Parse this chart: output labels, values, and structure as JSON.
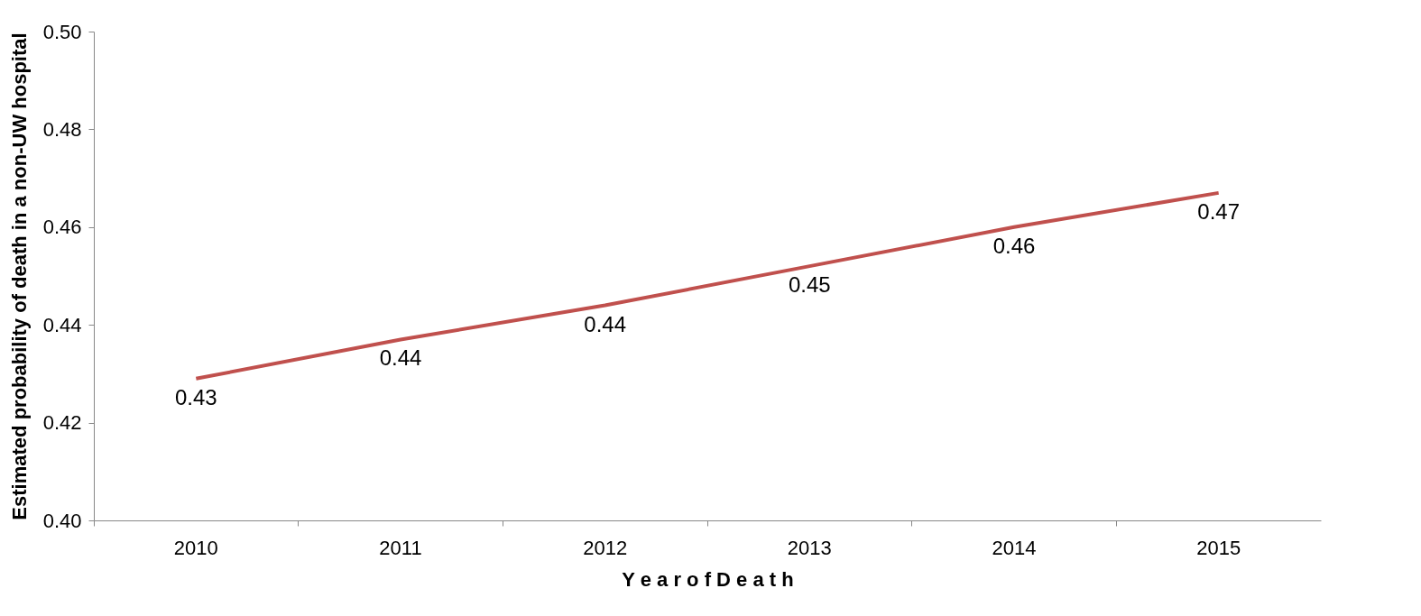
{
  "chart_data": {
    "type": "line",
    "xlabel": "Y e a r   o f   D e a t h",
    "ylabel": "Estimated probability of death in a non-UW hospital",
    "categories": [
      "2010",
      "2011",
      "2012",
      "2013",
      "2014",
      "2015"
    ],
    "series": [
      {
        "color": "#c0504d",
        "values": [
          0.429,
          0.437,
          0.444,
          0.452,
          0.46,
          0.467
        ],
        "value_labels": [
          "0.43",
          "0.44",
          "0.44",
          "0.45",
          "0.46",
          "0.47"
        ]
      }
    ],
    "ylim": [
      0.4,
      0.5
    ],
    "yticks": [
      {
        "value": 0.4,
        "label": "0.40"
      },
      {
        "value": 0.42,
        "label": "0.42"
      },
      {
        "value": 0.44,
        "label": "0.44"
      },
      {
        "value": 0.46,
        "label": "0.46"
      },
      {
        "value": 0.48,
        "label": "0.48"
      },
      {
        "value": 0.5,
        "label": "0.50"
      }
    ],
    "grid": false,
    "legend": false,
    "marker": "none",
    "line_style": "solid"
  }
}
